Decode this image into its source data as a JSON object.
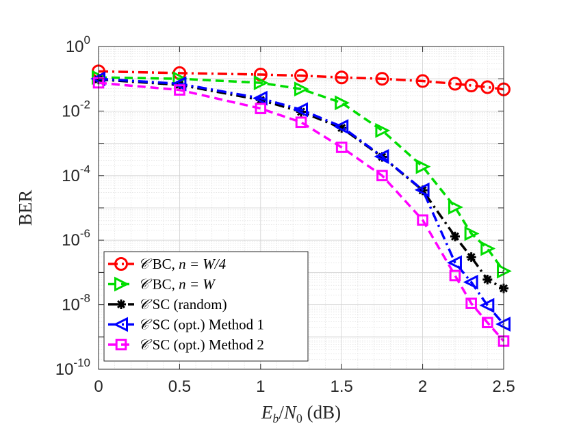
{
  "chart_data": {
    "type": "line",
    "xlabel": "E_b/N_0 (dB)",
    "xlabel_parts": {
      "e": "E",
      "b": "b",
      "slash": "/",
      "n": "N",
      "zero": "0",
      "unit": " (dB)"
    },
    "ylabel": "BER",
    "xscale": "linear",
    "yscale": "log",
    "xlim": [
      0,
      2.5
    ],
    "ylim": [
      1e-10,
      1
    ],
    "x_ticks": [
      {
        "value": 0,
        "label": "0"
      },
      {
        "value": 0.5,
        "label": "0.5"
      },
      {
        "value": 1,
        "label": "1"
      },
      {
        "value": 1.5,
        "label": "1.5"
      },
      {
        "value": 2,
        "label": "2"
      },
      {
        "value": 2.5,
        "label": "2.5"
      }
    ],
    "y_ticks": [
      {
        "exp": 0,
        "base": "10",
        "power": "0"
      },
      {
        "exp": -2,
        "base": "10",
        "power": "-2"
      },
      {
        "exp": -4,
        "base": "10",
        "power": "-4"
      },
      {
        "exp": -6,
        "base": "10",
        "power": "-6"
      },
      {
        "exp": -8,
        "base": "10",
        "power": "-8"
      },
      {
        "exp": -10,
        "base": "10",
        "power": "-10"
      }
    ],
    "grid": true,
    "legend_position": "bottom-left",
    "series": [
      {
        "name": "C BC, n = W/4",
        "legend_parts": {
          "cal": "𝒞",
          "text": " BC, ",
          "math": "n = W/4"
        },
        "color": "#ff0000",
        "marker": "circle",
        "line": "dashdot",
        "x": [
          0,
          0.5,
          1,
          1.25,
          1.5,
          1.75,
          2,
          2.2,
          2.3,
          2.4,
          2.5
        ],
        "y": [
          0.17,
          0.15,
          0.135,
          0.125,
          0.11,
          0.1,
          0.085,
          0.07,
          0.062,
          0.055,
          0.047
        ]
      },
      {
        "name": "C BC, n = W",
        "legend_parts": {
          "cal": "𝒞",
          "text": " BC, ",
          "math": "n = W"
        },
        "color": "#00dd00",
        "marker": "triangle-right",
        "line": "dashed",
        "x": [
          0,
          0.5,
          1,
          1.25,
          1.5,
          1.75,
          2,
          2.2,
          2.3,
          2.4,
          2.5
        ],
        "y": [
          0.11,
          0.1,
          0.075,
          0.048,
          0.018,
          0.0025,
          0.00019,
          1.05e-05,
          1.6e-06,
          5.5e-07,
          1.1e-07
        ]
      },
      {
        "name": "C SC (random)",
        "legend_parts": {
          "cal": "𝒞",
          "text": " SC (random)",
          "math": ""
        },
        "color": "#000000",
        "marker": "asterisk",
        "line": "dashdot",
        "x": [
          0,
          0.5,
          1,
          1.25,
          1.5,
          1.75,
          2,
          2.2,
          2.3,
          2.4,
          2.5
        ],
        "y": [
          0.095,
          0.065,
          0.022,
          0.0095,
          0.003,
          0.00038,
          3.5e-05,
          1.3e-06,
          3e-07,
          6e-08,
          3.2e-08
        ]
      },
      {
        "name": "C SC (opt.) Method 1",
        "legend_parts": {
          "cal": "𝒞",
          "text": " SC (opt.) Method 1",
          "math": ""
        },
        "color": "#0000ff",
        "marker": "triangle-left",
        "line": "dashdot",
        "x": [
          0,
          0.5,
          1,
          1.25,
          1.5,
          1.75,
          2,
          2.2,
          2.3,
          2.4,
          2.5
        ],
        "y": [
          0.1,
          0.07,
          0.025,
          0.011,
          0.0033,
          0.00039,
          3.6e-05,
          2e-07,
          5e-08,
          9.5e-09,
          2.5e-09
        ]
      },
      {
        "name": "C SC (opt.) Method 2",
        "legend_parts": {
          "cal": "𝒞",
          "text": " SC (opt.) Method 2",
          "math": ""
        },
        "color": "#ff00ff",
        "marker": "square",
        "line": "dashed",
        "x": [
          0,
          0.5,
          1,
          1.25,
          1.5,
          1.75,
          2,
          2.2,
          2.3,
          2.4,
          2.5
        ],
        "y": [
          0.075,
          0.045,
          0.012,
          0.0045,
          0.00075,
          0.0001,
          4.2e-06,
          8e-08,
          1.1e-08,
          2.8e-09,
          7.5e-10
        ]
      }
    ]
  }
}
